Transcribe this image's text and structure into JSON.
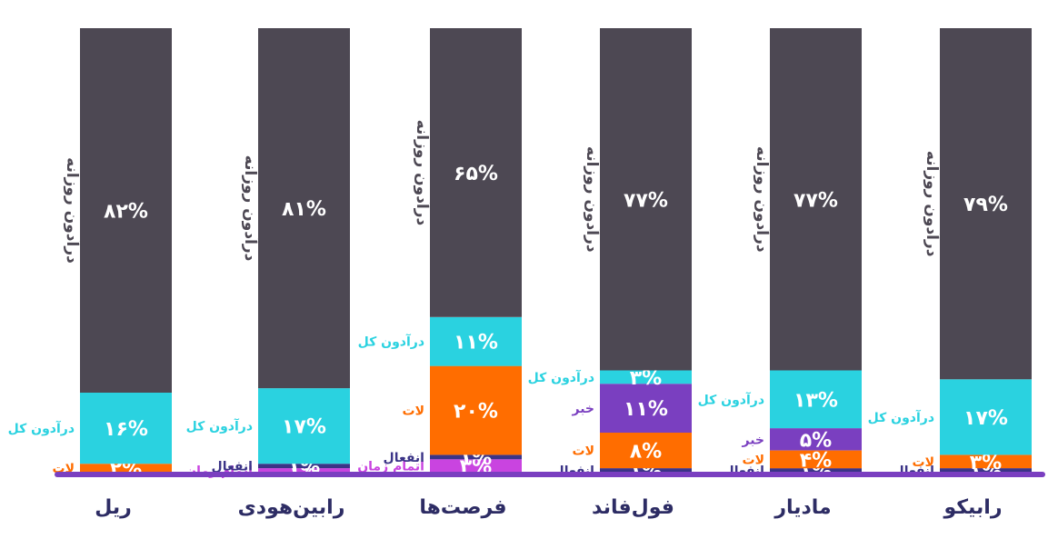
{
  "colors": {
    "daily": "#4d4853",
    "total": "#2ad2e0",
    "lot": "#ff6d00",
    "news": "#7a3fc0",
    "excitement": "#3b3487",
    "timeout": "#c944e0",
    "axis": "#7a3fc0",
    "category": "#2d2c64"
  },
  "chart_data": {
    "type": "bar",
    "stacked": true,
    "unit": "%",
    "ylim": [
      0,
      100
    ],
    "categories": [
      "ریل",
      "رابین‌هودی",
      "فرصت‌ها",
      "فول‌فاند",
      "مادیار",
      "رابیکو"
    ],
    "bars": [
      {
        "category": "ریل",
        "segments": [
          {
            "label": "لات",
            "value": 2,
            "display": "۲%",
            "color_key": "lot"
          },
          {
            "label": "درآدون کل",
            "value": 16,
            "display": "۱۶%",
            "color_key": "total"
          },
          {
            "label": "درآدون روزانه",
            "value": 82,
            "display": "۸۲%",
            "color_key": "daily"
          }
        ]
      },
      {
        "category": "رابین‌هودی",
        "segments": [
          {
            "label": "اتمام زمان",
            "value": 1,
            "display": "۱%",
            "color_key": "timeout"
          },
          {
            "label": "انفعال",
            "value": 1,
            "display": "۱%",
            "color_key": "excitement"
          },
          {
            "label": "درآدون کل",
            "value": 17,
            "display": "۱۷%",
            "color_key": "total"
          },
          {
            "label": "درآدون روزانه",
            "value": 81,
            "display": "۸۱%",
            "color_key": "daily"
          }
        ]
      },
      {
        "category": "فرصت‌ها",
        "segments": [
          {
            "label": "اتمام زمان",
            "value": 3,
            "display": "۳%",
            "color_key": "timeout"
          },
          {
            "label": "انفعال",
            "value": 1,
            "display": "۱%",
            "color_key": "excitement"
          },
          {
            "label": "لات",
            "value": 20,
            "display": "۲۰%",
            "color_key": "lot"
          },
          {
            "label": "درآدون کل",
            "value": 11,
            "display": "۱۱%",
            "color_key": "total"
          },
          {
            "label": "درآدون روزانه",
            "value": 65,
            "display": "۶۵%",
            "color_key": "daily"
          }
        ]
      },
      {
        "category": "فول‌فاند",
        "segments": [
          {
            "label": "انفعال",
            "value": 1,
            "display": "۱%",
            "color_key": "excitement"
          },
          {
            "label": "لات",
            "value": 8,
            "display": "۸%",
            "color_key": "lot"
          },
          {
            "label": "خبر",
            "value": 11,
            "display": "۱۱%",
            "color_key": "news"
          },
          {
            "label": "درآدون کل",
            "value": 3,
            "display": "۳%",
            "color_key": "total"
          },
          {
            "label": "درآدون روزانه",
            "value": 77,
            "display": "۷۷%",
            "color_key": "daily"
          }
        ]
      },
      {
        "category": "مادیار",
        "segments": [
          {
            "label": "انفعال",
            "value": 1,
            "display": "۱%",
            "color_key": "excitement"
          },
          {
            "label": "لات",
            "value": 4,
            "display": "۴%",
            "color_key": "lot"
          },
          {
            "label": "خبر",
            "value": 5,
            "display": "۵%",
            "color_key": "news"
          },
          {
            "label": "درآدون کل",
            "value": 13,
            "display": "۱۳%",
            "color_key": "total"
          },
          {
            "label": "درآدون روزانه",
            "value": 77,
            "display": "۷۷%",
            "color_key": "daily"
          }
        ]
      },
      {
        "category": "رابیکو",
        "segments": [
          {
            "label": "انفعال",
            "value": 1,
            "display": "۱%",
            "color_key": "excitement"
          },
          {
            "label": "لات",
            "value": 3,
            "display": "۳%",
            "color_key": "lot"
          },
          {
            "label": "درآدون کل",
            "value": 17,
            "display": "۱۷%",
            "color_key": "total"
          },
          {
            "label": "درآدون روزانه",
            "value": 79,
            "display": "۷۹%",
            "color_key": "daily"
          }
        ]
      }
    ]
  }
}
